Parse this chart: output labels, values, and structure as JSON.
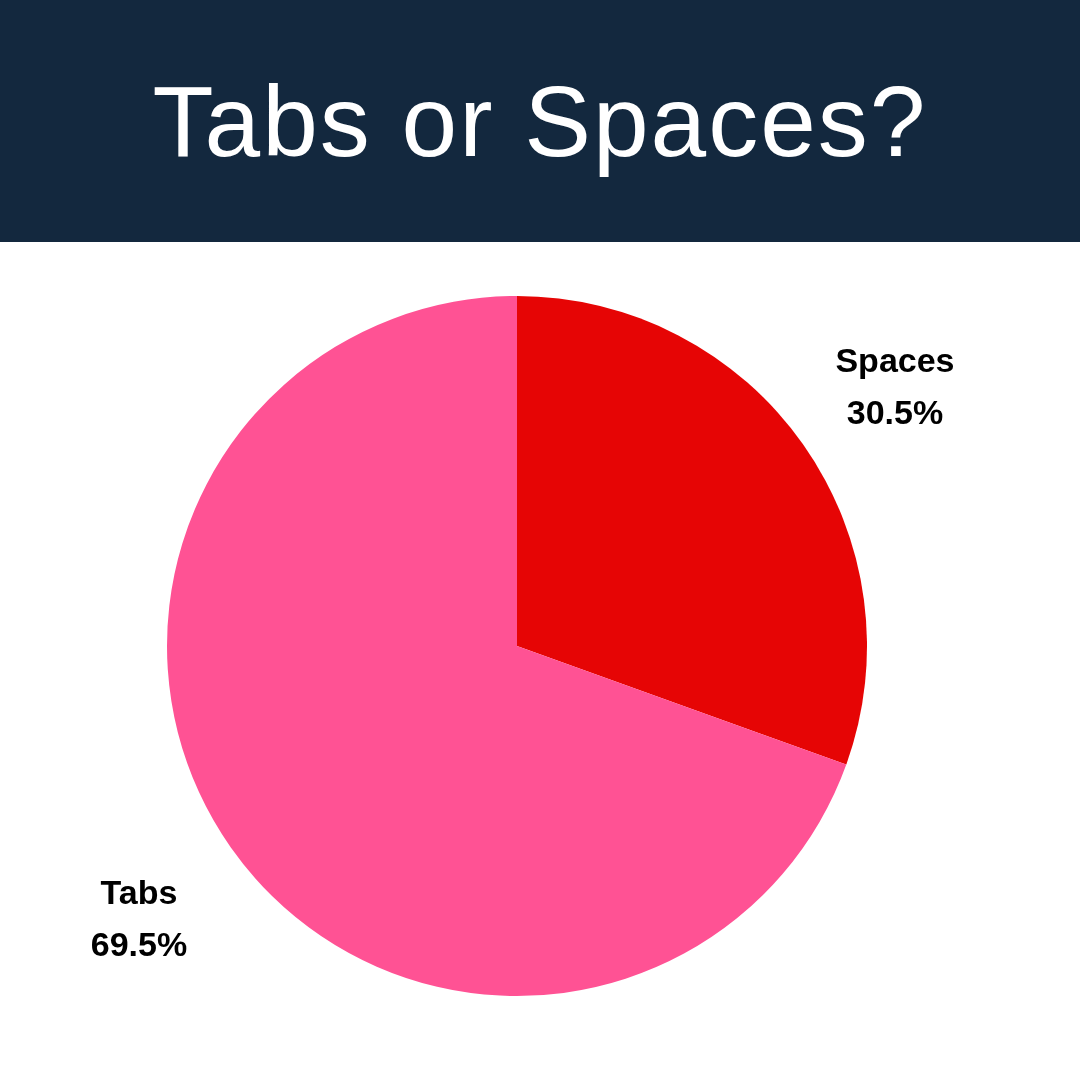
{
  "chart_data": {
    "type": "pie",
    "title": "Tabs or Spaces?",
    "categories": [
      "Spaces",
      "Tabs"
    ],
    "values": [
      30.5,
      69.5
    ],
    "colors": [
      "#e60505",
      "#ff5294"
    ],
    "value_labels": [
      "30.5%",
      "69.5%"
    ]
  }
}
